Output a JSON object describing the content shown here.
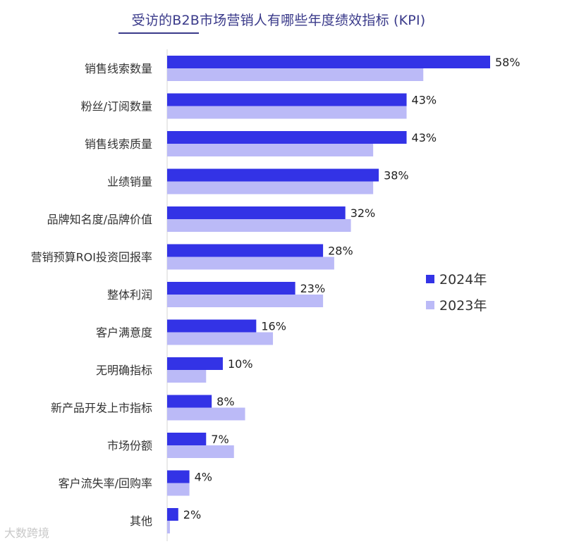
{
  "chart_data": {
    "type": "bar",
    "orientation": "horizontal",
    "title": "受访的B2B市场营销人有哪些年度绩效指标 (KPI)",
    "categories": [
      "销售线索数量",
      "粉丝/订阅数量",
      "销售线索质量",
      "业绩销量",
      "品牌知名度/品牌价值",
      "营销预算ROI投资回报率",
      "整体利润",
      "客户满意度",
      "无明确指标",
      "新产品开发上市指标",
      "市场份额",
      "客户流失率/回购率",
      "其他"
    ],
    "series": [
      {
        "name": "2024年",
        "color": "#3333e6",
        "values": [
          58,
          43,
          43,
          38,
          32,
          28,
          23,
          16,
          10,
          8,
          7,
          4,
          2
        ],
        "value_labels": [
          "58%",
          "43%",
          "43%",
          "38%",
          "32%",
          "28%",
          "23%",
          "16%",
          "10%",
          "8%",
          "7%",
          "4%",
          "2%"
        ]
      },
      {
        "name": "2023年",
        "color": "#bbbaf7",
        "values": [
          46,
          43,
          37,
          37,
          33,
          30,
          28,
          19,
          7,
          14,
          12,
          4,
          0.5
        ]
      }
    ],
    "xlim": [
      0,
      60
    ],
    "legend_position": "right-middle",
    "grid": false
  },
  "watermark": "大数跨境"
}
